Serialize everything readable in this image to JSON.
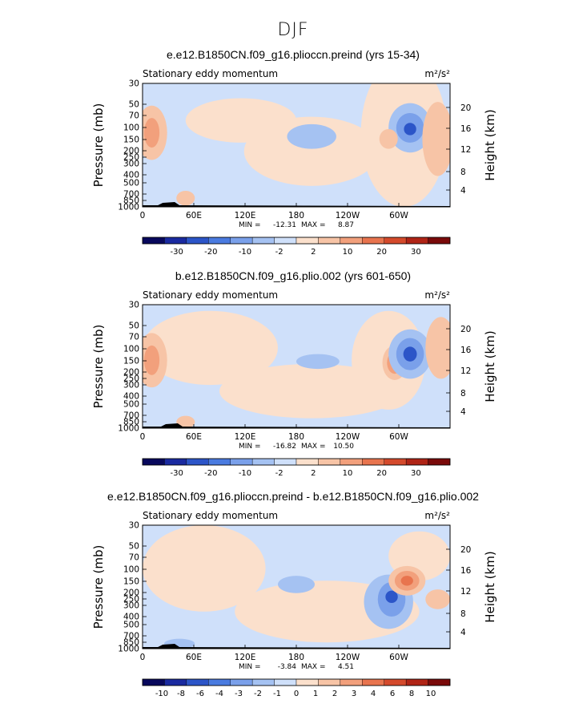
{
  "figure_title": "DJF",
  "chart_data": [
    {
      "type": "heatmap",
      "title": "e.e12.B1850CN.f09_g16.plioccn.preind (yrs 15-34)",
      "subtitle_left": "Stationary eddy momentum",
      "units": "m²/s²",
      "ylabel": "Pressure (mb)",
      "ylabel_right": "Height (km)",
      "x_ticks": [
        "0",
        "60E",
        "120E",
        "180",
        "120W",
        "60W"
      ],
      "y_ticks": [
        "30",
        "50",
        "70",
        "100",
        "150",
        "200",
        "250",
        "300",
        "400",
        "500",
        "700",
        "850",
        "1000"
      ],
      "y_ticks_right": [
        "20",
        "16",
        "12",
        "8",
        "4"
      ],
      "stats": {
        "min_label": "MIN =",
        "min": "-12.31",
        "max_label": "MAX =",
        "max": "8.87"
      },
      "colorbar_ticks": [
        "-30",
        "-20",
        "-10",
        "-2",
        "2",
        "10",
        "20",
        "30"
      ],
      "contour_levels": [
        -35,
        -30,
        -25,
        -20,
        -15,
        -10,
        -5,
        -2,
        -1,
        1,
        2,
        5,
        10,
        15,
        20,
        25,
        30,
        35
      ]
    },
    {
      "type": "heatmap",
      "title": "b.e12.B1850CN.f09_g16.plio.002 (yrs 601-650)",
      "subtitle_left": "Stationary eddy momentum",
      "units": "m²/s²",
      "ylabel": "Pressure (mb)",
      "ylabel_right": "Height (km)",
      "x_ticks": [
        "0",
        "60E",
        "120E",
        "180",
        "120W",
        "60W"
      ],
      "y_ticks": [
        "30",
        "50",
        "70",
        "100",
        "150",
        "200",
        "250",
        "300",
        "400",
        "500",
        "700",
        "850",
        "1000"
      ],
      "y_ticks_right": [
        "20",
        "16",
        "12",
        "8",
        "4"
      ],
      "stats": {
        "min_label": "MIN =",
        "min": "-16.82",
        "max_label": "MAX =",
        "max": "10.50"
      },
      "colorbar_ticks": [
        "-30",
        "-20",
        "-10",
        "-2",
        "2",
        "10",
        "20",
        "30"
      ],
      "contour_levels": [
        -35,
        -30,
        -25,
        -20,
        -15,
        -10,
        -5,
        -2,
        -1,
        1,
        2,
        5,
        10,
        15,
        20,
        25,
        30,
        35
      ]
    },
    {
      "type": "heatmap",
      "title": "e.e12.B1850CN.f09_g16.plioccn.preind - b.e12.B1850CN.f09_g16.plio.002",
      "subtitle_left": "Stationary eddy momentum",
      "units": "m²/s²",
      "ylabel": "Pressure (mb)",
      "ylabel_right": "Height (km)",
      "x_ticks": [
        "0",
        "60E",
        "120E",
        "180",
        "120W",
        "60W"
      ],
      "y_ticks": [
        "30",
        "50",
        "70",
        "100",
        "150",
        "200",
        "250",
        "300",
        "400",
        "500",
        "700",
        "850",
        "1000"
      ],
      "y_ticks_right": [
        "20",
        "16",
        "12",
        "8",
        "4"
      ],
      "stats": {
        "min_label": "MIN =",
        "min": "-3.84",
        "max_label": "MAX =",
        "max": "4.51"
      },
      "colorbar_ticks": [
        "-10",
        "-8",
        "-6",
        "-4",
        "-3",
        "-2",
        "-1",
        "0",
        "1",
        "2",
        "3",
        "4",
        "6",
        "8",
        "10"
      ],
      "contour_levels": [
        -10,
        -8,
        -6,
        -4,
        -3,
        -2,
        -1,
        0,
        1,
        2,
        3,
        4,
        6,
        8,
        10
      ]
    }
  ],
  "colors": {
    "palette": [
      "#08085c",
      "#1a2aa0",
      "#2c55c8",
      "#4a7be0",
      "#7aa0ea",
      "#a5c2f2",
      "#cfe0fa",
      "#fbe0cc",
      "#f7c4a6",
      "#f2a07c",
      "#e8744e",
      "#d44a2c",
      "#b02416",
      "#7a0a0a"
    ],
    "neg_light": "#cfe0fa",
    "neg_mid": "#a5c2f2",
    "neg_dark": "#7aa0ea",
    "neg_strong": "#2c55c8",
    "pos_light": "#fbe0cc",
    "pos_mid": "#f7c4a6",
    "pos_dark": "#f2a07c",
    "pos_strong": "#e8744e",
    "terrain": "#000000"
  }
}
